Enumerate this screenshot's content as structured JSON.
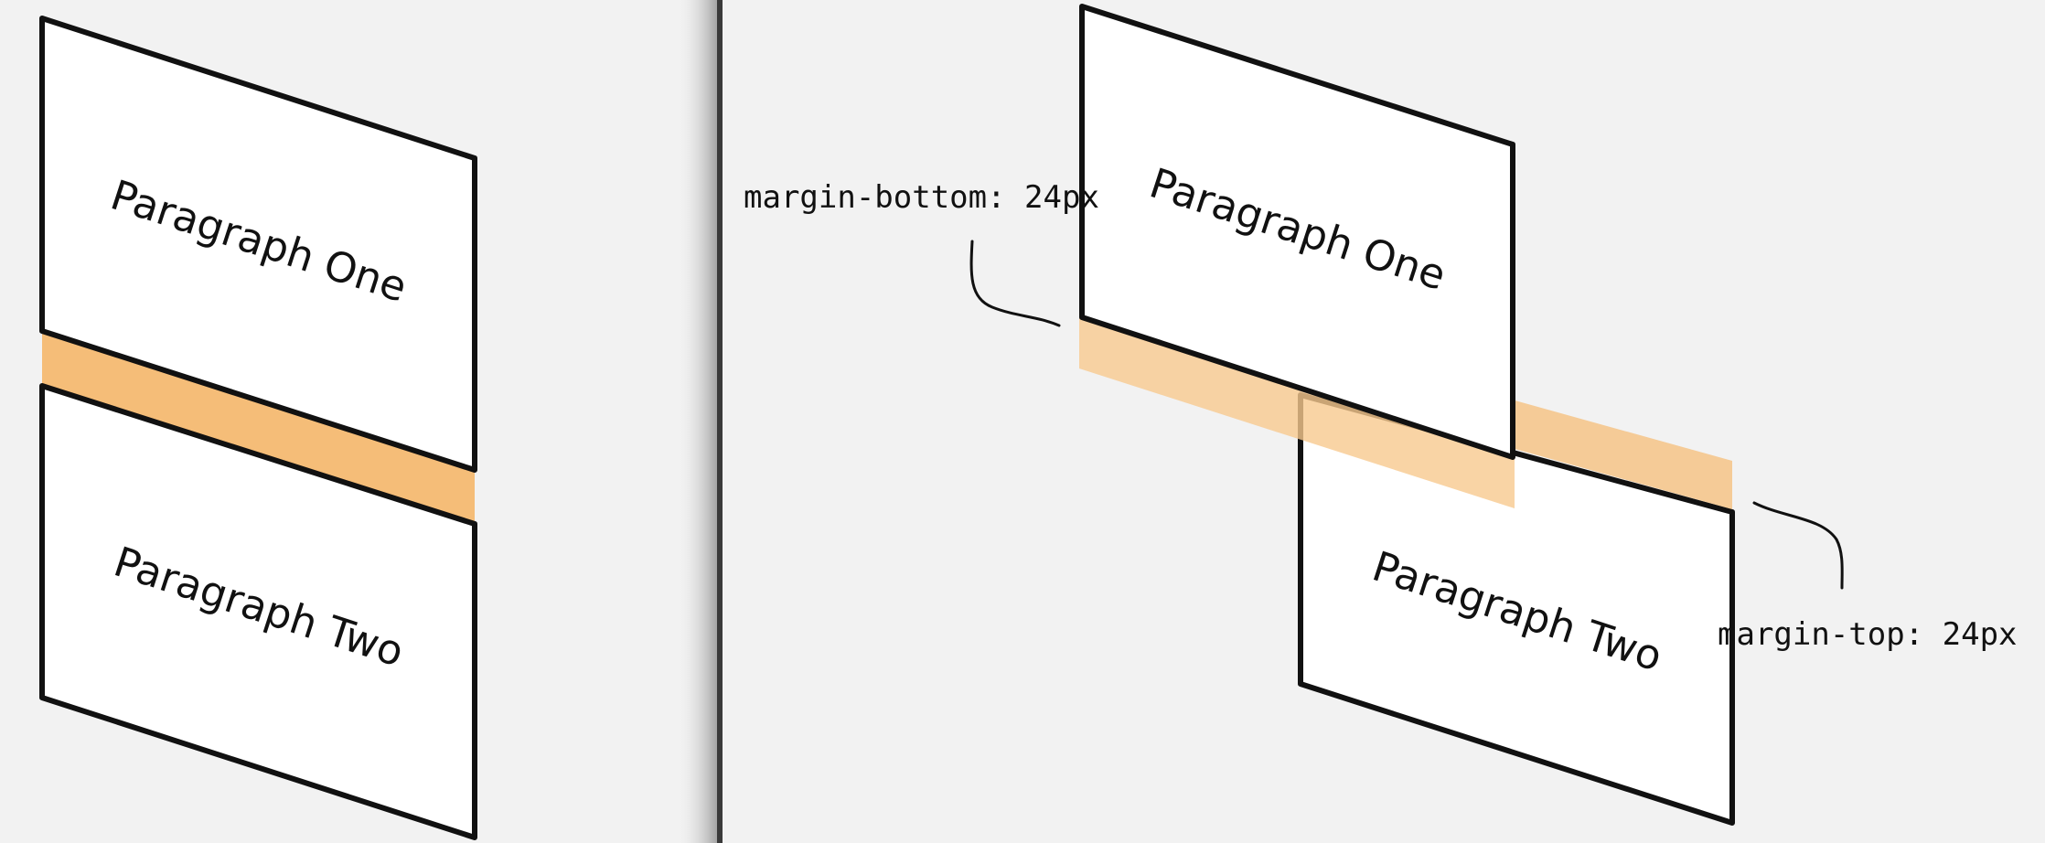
{
  "left_panel": {
    "paragraph_one": "Paragraph One",
    "paragraph_two": "Paragraph Two"
  },
  "right_panel": {
    "paragraph_one": "Paragraph One",
    "paragraph_two": "Paragraph Two",
    "margin_bottom_label": "margin-bottom: 24px",
    "margin_top_label": "margin-top: 24px"
  },
  "colors": {
    "background": "#f2f2f2",
    "margin_left": "#f5bd78",
    "margin_right": "#f8c98f",
    "outline": "#111111",
    "box_fill": "#ffffff",
    "divider": "#3a3a3a"
  }
}
